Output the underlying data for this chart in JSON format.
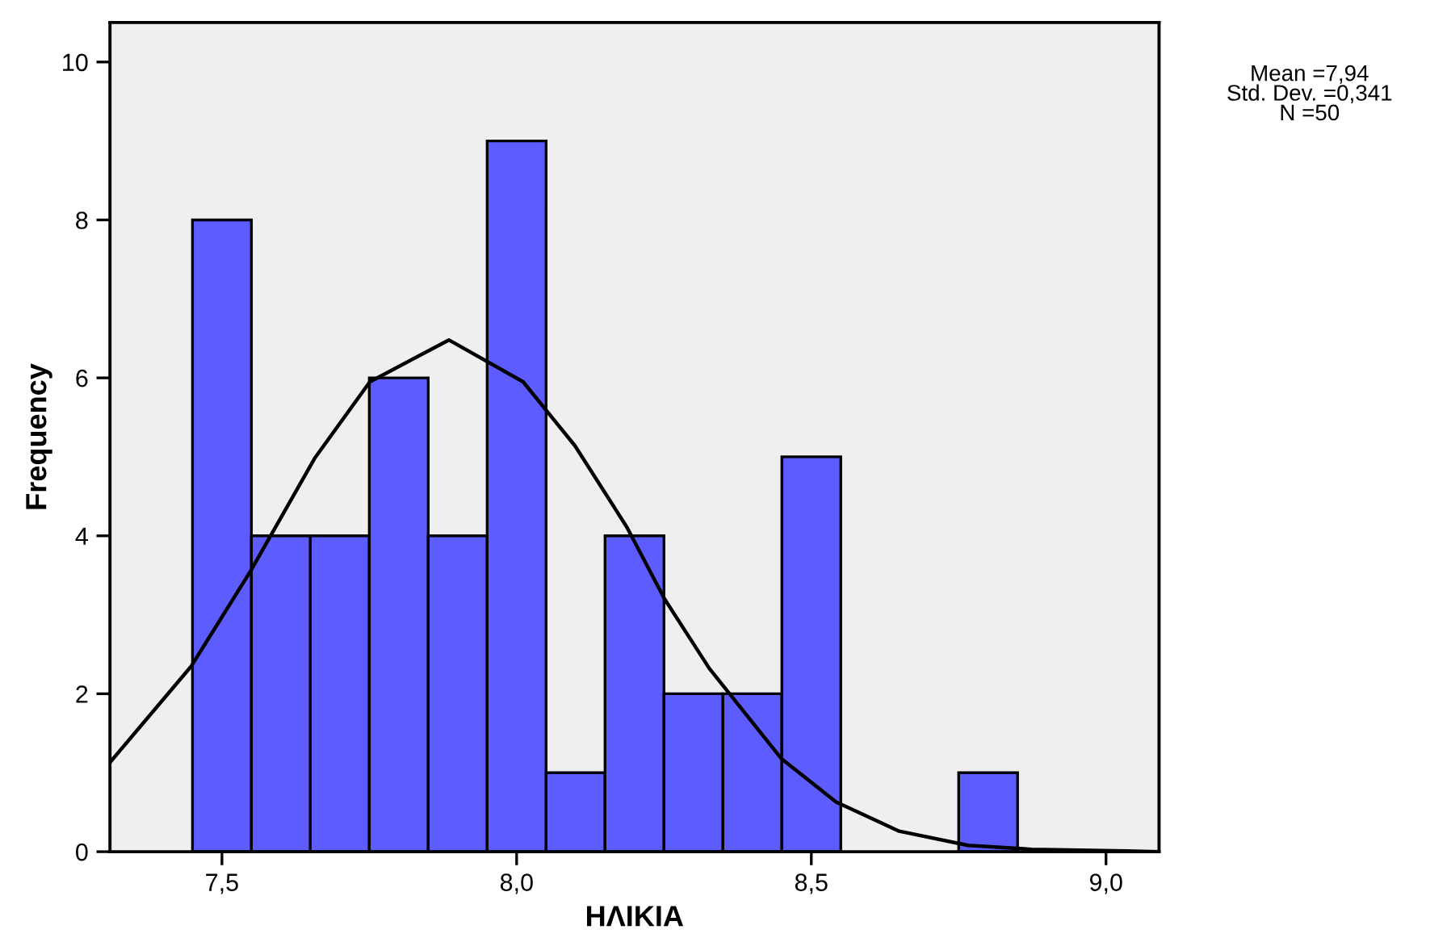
{
  "chart_data": {
    "type": "histogram",
    "xlabel": "ΗΛΙΚΙΑ",
    "ylabel": "Frequency",
    "annotations": [
      "Mean =7,94",
      "Std. Dev. =0,341",
      "N =50"
    ],
    "bins": [
      7.45,
      7.55,
      7.65,
      7.75,
      7.85,
      7.95,
      8.05,
      8.15,
      8.25,
      8.35,
      8.45,
      8.55,
      8.65,
      8.75,
      8.85
    ],
    "series": [
      {
        "type": "histogram",
        "color": "#5c5cff",
        "values": [
          8,
          4,
          4,
          6,
          4,
          9,
          1,
          4,
          2,
          2,
          5,
          0,
          0,
          1
        ]
      },
      {
        "type": "line",
        "color": "#000000",
        "x": [
          7.311,
          7.448,
          7.549,
          7.658,
          7.751,
          7.885,
          8.011,
          8.099,
          8.187,
          8.251,
          8.327,
          8.449,
          8.542,
          8.649,
          8.766,
          8.874,
          9.035,
          9.089
        ],
        "values": [
          1.14,
          2.35,
          3.56,
          4.99,
          5.95,
          6.48,
          5.95,
          5.14,
          4.11,
          3.2,
          2.32,
          1.18,
          0.63,
          0.26,
          0.08,
          0.03,
          0.01,
          0.0
        ]
      }
    ],
    "xlim": [
      7.31,
      9.09
    ],
    "ylim": [
      0,
      10.5
    ],
    "xticks": [
      {
        "value": 7.5,
        "label": "7,5"
      },
      {
        "value": 8.0,
        "label": "8,0"
      },
      {
        "value": 8.5,
        "label": "8,5"
      },
      {
        "value": 9.0,
        "label": "9,0"
      }
    ],
    "yticks": [
      0,
      2,
      4,
      6,
      8,
      10
    ],
    "grid": false,
    "legend": false
  }
}
